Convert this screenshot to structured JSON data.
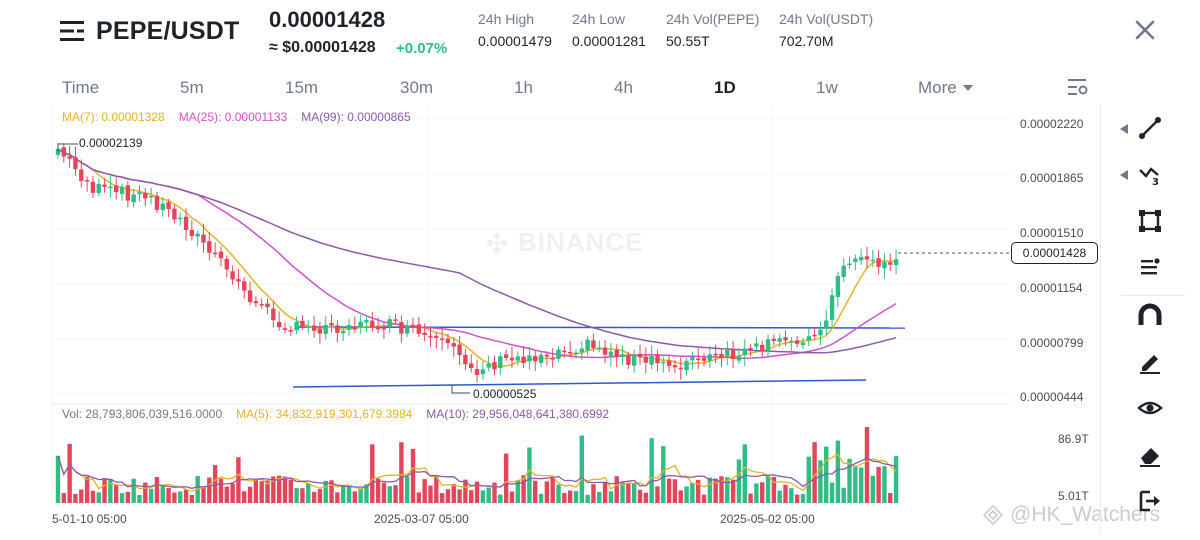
{
  "header": {
    "pair": "PEPE/USDT",
    "last_price": "0.00001428",
    "usd_price": "≈ $0.00001428",
    "change": "+0.07%",
    "stats": [
      {
        "label": "24h High",
        "value": "0.00001479"
      },
      {
        "label": "24h Low",
        "value": "0.00001281"
      },
      {
        "label": "24h Vol(PEPE)",
        "value": "50.55T"
      },
      {
        "label": "24h Vol(USDT)",
        "value": "702.70M"
      }
    ]
  },
  "tabs": [
    "Time",
    "5m",
    "15m",
    "30m",
    "1h",
    "4h",
    "1D",
    "1w",
    "More"
  ],
  "active_tab": "1D",
  "legends": {
    "ma7": "MA(7): 0.00001328",
    "ma25": "MA(25): 0.00001133",
    "ma99": "MA(99): 0.00000865",
    "vol": "Vol: 28,793,806,039,516.0000",
    "vol_ma5": "MA(5): 34,832,919,301,679.3984",
    "vol_ma10": "MA(10): 29,956,048,641,380.6992"
  },
  "price_axis": [
    "0.00002220",
    "0.00001865",
    "0.00001510",
    "0.00001154",
    "0.00000799",
    "0.00000444"
  ],
  "current_price_tag": "0.00001428",
  "volume_axis": [
    "86.9T",
    "5.01T"
  ],
  "time_axis": [
    "5-01-10 05:00",
    "2025-03-07 05:00",
    "2025-05-02 05:00"
  ],
  "annotations": {
    "high": "0.00002139",
    "low": "0.00000525"
  },
  "watermark": "BINANCE",
  "corner_mark": "@HK_Watchers",
  "colors": {
    "up": "#2ebd85",
    "down": "#e5455a",
    "ma7": "#e6b325",
    "ma25": "#d550c8",
    "ma99": "#8b5aa8",
    "trendline": "#2c57d6",
    "text_secondary": "#707a8a"
  },
  "toolbar_icons": [
    "trend-line-icon",
    "multi-line-icon",
    "rectangle-icon",
    "fib-lines-icon",
    "magnet-icon",
    "pencil-icon",
    "eye-icon",
    "eraser-icon",
    "exit-icon"
  ]
}
